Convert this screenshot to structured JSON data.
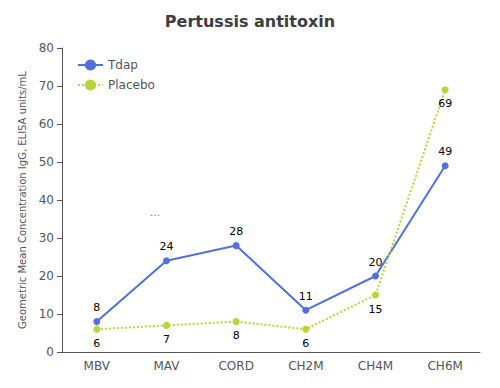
{
  "chart_data": {
    "type": "line",
    "title": "Pertussis antitoxin",
    "ylabel": "Geometric Mean Concentration IgG, ELISA units/mL",
    "categories": [
      "MBV",
      "MAV",
      "CORD",
      "CH2M",
      "CH4M",
      "CH6M"
    ],
    "series": [
      {
        "name": "Tdap",
        "values": [
          8,
          24,
          28,
          11,
          20,
          49
        ],
        "line_style": "solid",
        "marker": "circle"
      },
      {
        "name": "Placebo",
        "values": [
          6,
          7,
          8,
          6,
          15,
          69
        ],
        "line_style": "dotted",
        "marker": "circle"
      }
    ],
    "ylim": [
      0,
      80
    ],
    "yticks": [
      0,
      10,
      20,
      30,
      40,
      50,
      60,
      70,
      80
    ],
    "grid": false,
    "legend": "upper left",
    "data_labels": true,
    "annotation": "..."
  }
}
